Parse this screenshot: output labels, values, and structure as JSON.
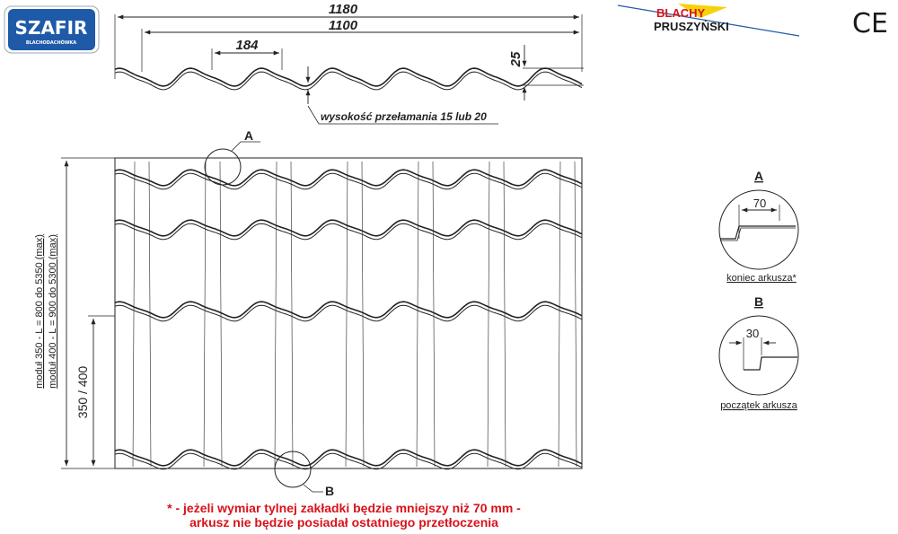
{
  "logos": {
    "szafir": {
      "name": "SZAFIR",
      "subtitle": "BLACHODACHÓWKA",
      "color": "#1f5aa8"
    },
    "blachy": {
      "line1": "BLACHY",
      "line2": "PRUSZYŃSKI",
      "accent": "#d8131a",
      "yellow": "#f5d20a"
    },
    "ce_mark": "CE"
  },
  "profile_view": {
    "dim_total_width": "1180",
    "dim_effective_width": "1100",
    "dim_wave_pitch": "184",
    "dim_wave_height": "25",
    "note_bend_height": "wysokość przełamania 15 lub 20"
  },
  "sheet_view": {
    "detail_a_marker": "A",
    "detail_b_marker": "B",
    "length_label_350": "moduł 350 - L = 800 do 5350 (max)",
    "length_label_400": "moduł 400 - L = 900 do 5300 (max)",
    "module_label": "350 / 400"
  },
  "details": {
    "a": {
      "letter": "A",
      "dimension": "70",
      "caption": "koniec arkusza*"
    },
    "b": {
      "letter": "B",
      "dimension": "30",
      "caption": "początek arkusza"
    }
  },
  "footnote": {
    "line1": "* - jeżeli wymiar tylnej zakładki będzie mniejszy niż 70 mm -",
    "line2": "arkusz nie będzie posiadał ostatniego przetłoczenia"
  }
}
